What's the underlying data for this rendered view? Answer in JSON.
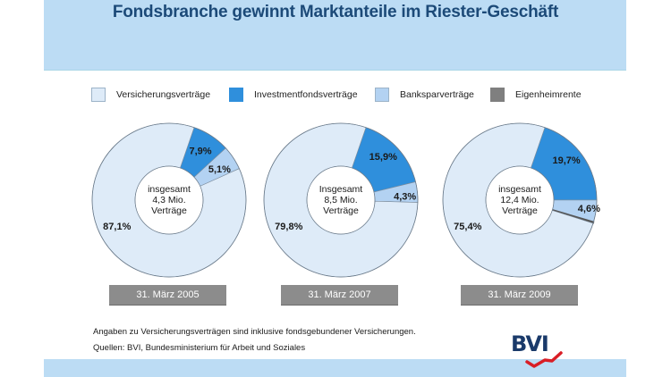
{
  "header": {
    "title": "Fondsbranche gewinnt Marktanteile im Riester-Geschäft"
  },
  "colors": {
    "header_band": "#bcdcf4",
    "title": "#1c4a78",
    "versicherung": "#deebf8",
    "investment": "#2f8fdc",
    "banksparen": "#b3d2f2",
    "eigenheim": "#7f7f7f",
    "date_box": "#8c8c8c",
    "logo_text": "#1a3a6a",
    "logo_swoosh": "#d91e26"
  },
  "chart_data": [
    {
      "type": "pie",
      "variant": "donut",
      "title": "31. März 2005",
      "center_label": [
        "insgesamt",
        "4,3 Mio.",
        "Verträge"
      ],
      "categories": [
        "Investmentfondsverträge",
        "Banksparverträge",
        "Eigenheimrente",
        "Versicherungsverträge"
      ],
      "values": [
        7.9,
        5.1,
        0,
        87.1
      ],
      "labels": [
        "7,9%",
        "5,1%",
        "",
        "87,1%"
      ],
      "unit": "%"
    },
    {
      "type": "pie",
      "variant": "donut",
      "title": "31. März 2007",
      "center_label": [
        "Insgesamt",
        "8,5 Mio.",
        "Verträge"
      ],
      "categories": [
        "Investmentfondsverträge",
        "Banksparverträge",
        "Eigenheimrente",
        "Versicherungsverträge"
      ],
      "values": [
        15.9,
        4.3,
        0,
        79.8
      ],
      "labels": [
        "15,9%",
        "4,3%",
        "",
        "79,8%"
      ],
      "unit": "%"
    },
    {
      "type": "pie",
      "variant": "donut",
      "title": "31. März 2009",
      "center_label": [
        "insgesamt",
        "12,4 Mio.",
        "Verträge"
      ],
      "categories": [
        "Investmentfondsverträge",
        "Banksparverträge",
        "Eigenheimrente",
        "Versicherungsverträge"
      ],
      "values": [
        19.7,
        4.6,
        0.3,
        75.4
      ],
      "labels": [
        "19,7%",
        "4,6%",
        "0,3%",
        "75,4%"
      ],
      "unit": "%"
    }
  ],
  "legend": {
    "items": [
      {
        "label": "Versicherungsverträge",
        "key": "versicherung"
      },
      {
        "label": "Investmentfondsverträge",
        "key": "investment"
      },
      {
        "label": "Banksparverträge",
        "key": "banksparen"
      },
      {
        "label": "Eigenheimrente",
        "key": "eigenheim"
      }
    ],
    "placement": "top"
  },
  "notes": {
    "line1": "Angaben zu Versicherungsverträgen sind inklusive fondsgebundener Versicherungen.",
    "line2": "Quellen: BVI, Bundesministerium für Arbeit und Soziales"
  },
  "logo": {
    "text": "BVI"
  }
}
